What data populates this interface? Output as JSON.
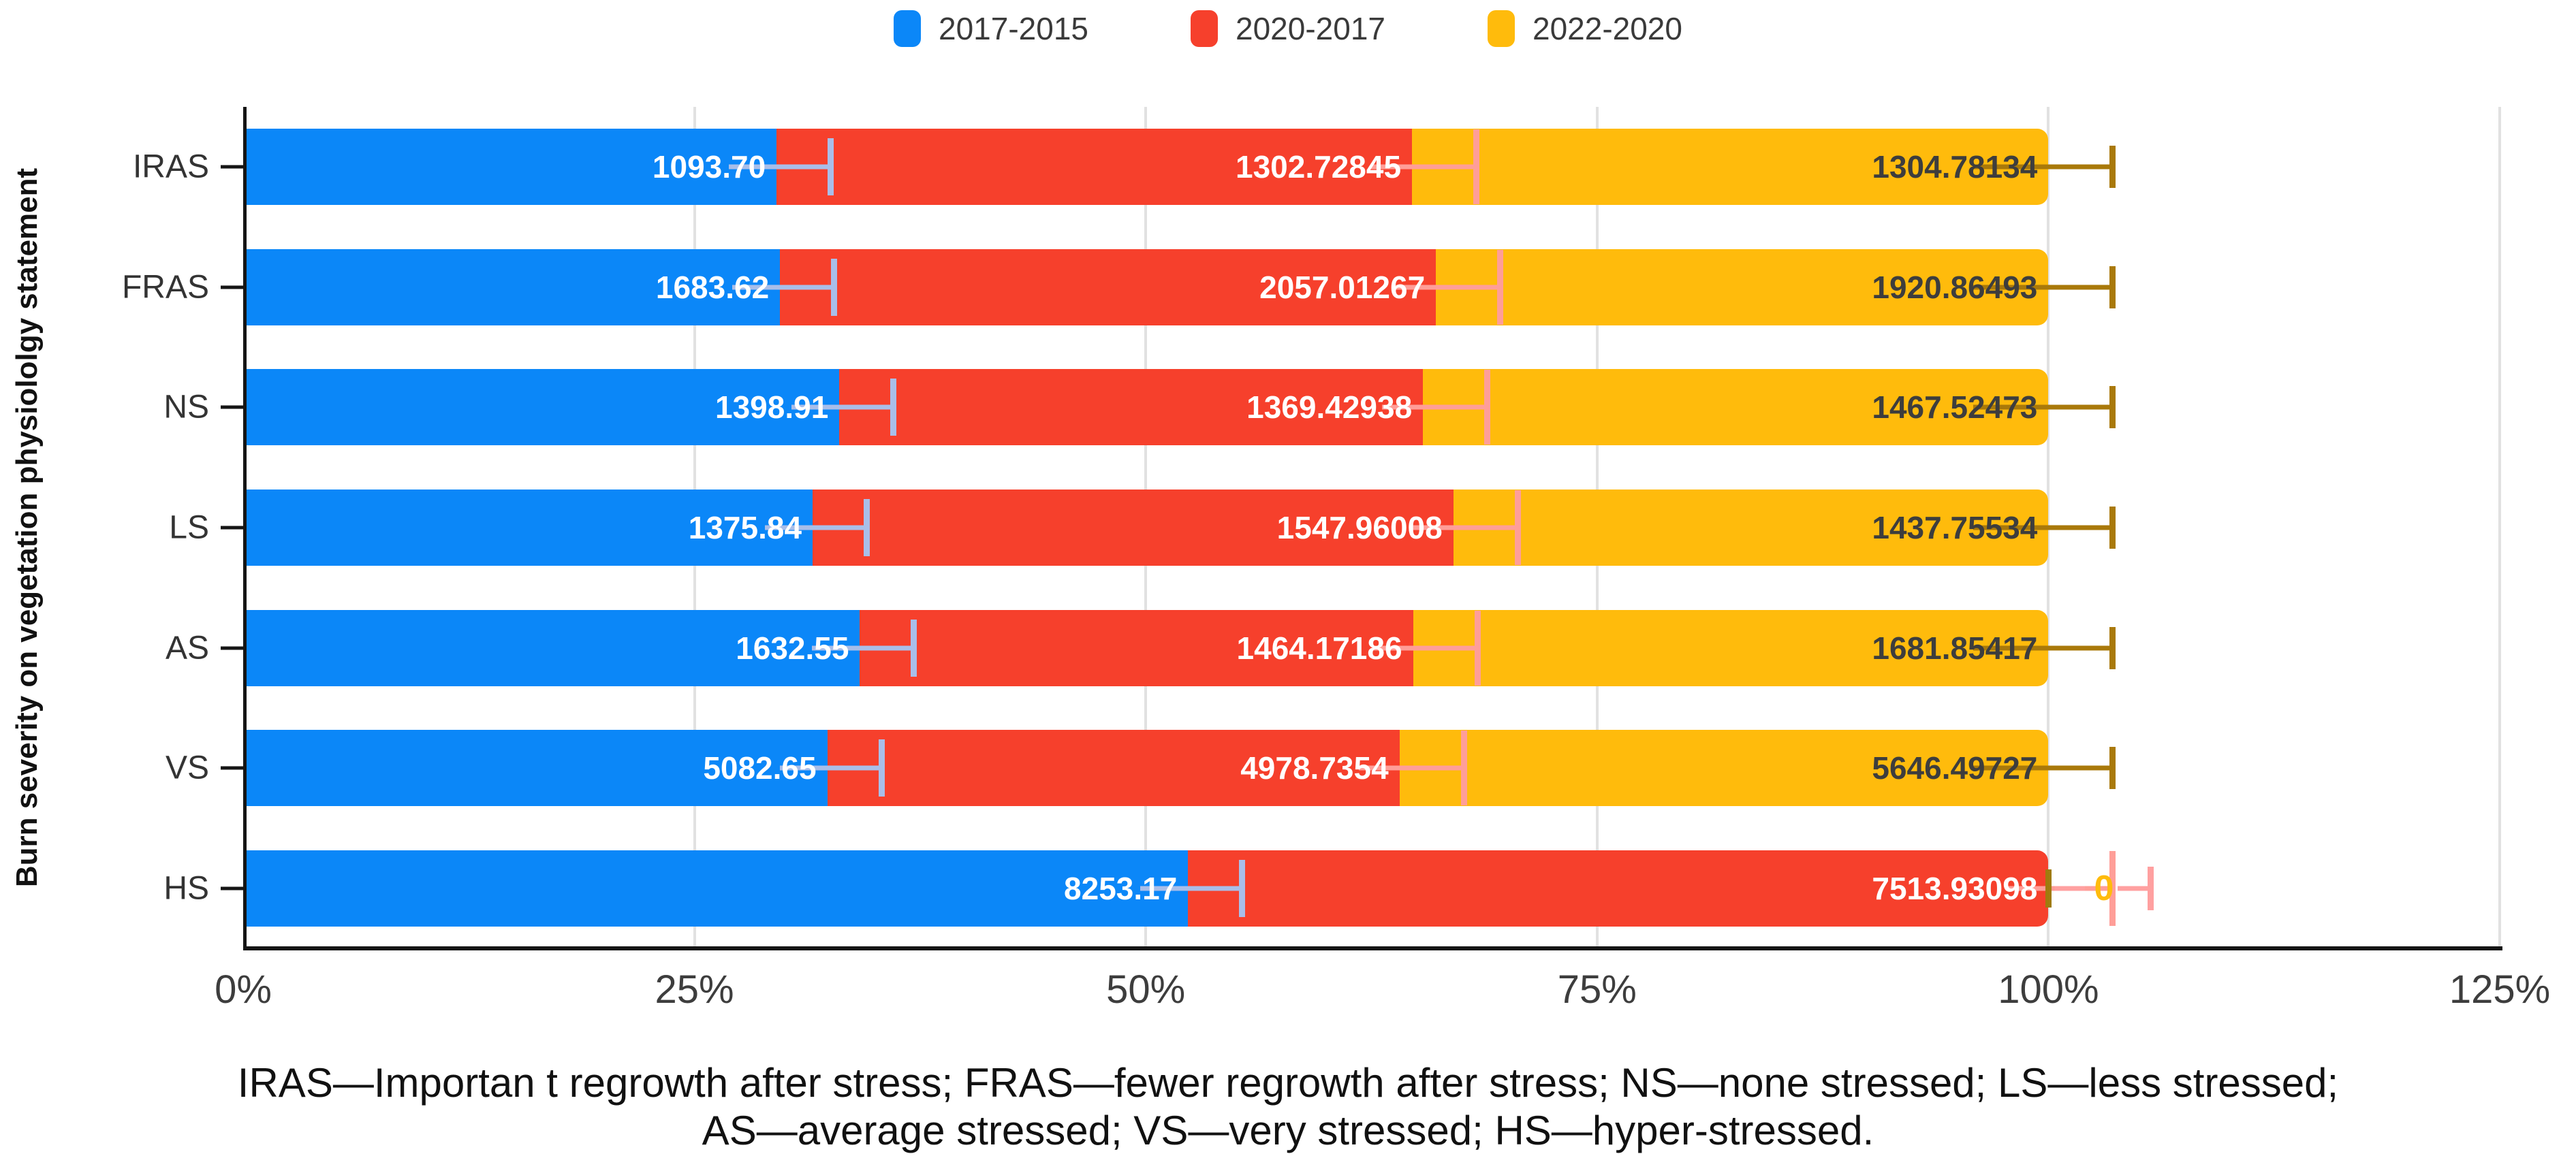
{
  "figure": {
    "y_axis_title": "Burn severity on vegetation physiololgy statement",
    "caption_lines": [
      "IRAS—Importan t regrowth after stress; FRAS—fewer regrowth after stress; NS—none stressed; LS—less stressed;",
      "AS—average stressed; VS—very stressed; HS—hyper-stressed."
    ]
  },
  "colors": {
    "axis": "#151515",
    "grid": "#e1e1e1",
    "category_text": "#333333",
    "tick_text": "#3d3d3d"
  },
  "chart_data": {
    "type": "bar",
    "stacked": "percent",
    "orientation": "horizontal",
    "categories": [
      "IRAS",
      "FRAS",
      "NS",
      "LS",
      "AS",
      "VS",
      "HS"
    ],
    "series": [
      {
        "name": "2017-2015",
        "color": "#0b87f8",
        "label_color": "#ffffff",
        "error_color": "#a9bee9",
        "values": [
          1093.7,
          1683.62,
          1398.91,
          1375.84,
          1632.55,
          5082.65,
          8253.17
        ],
        "labels": [
          "1093.70",
          "1683.62",
          "1398.91",
          "1375.84",
          "1632.55",
          "5082.65",
          "8253.17"
        ]
      },
      {
        "name": "2020-2017",
        "color": "#f6402c",
        "label_color": "#ffffff",
        "error_color": "#ff9e98",
        "values": [
          1302.72845,
          2057.01267,
          1369.42938,
          1547.96008,
          1464.17186,
          4978.7354,
          7513.93098
        ],
        "labels": [
          "1302.72845",
          "2057.01267",
          "1369.42938",
          "1547.96008",
          "1464.17186",
          "4978.7354",
          "7513.93098"
        ]
      },
      {
        "name": "2022-2020",
        "color": "#ffbb0c",
        "label_color": "#3d3d3d",
        "error_color": "#a9790a",
        "values": [
          1304.78134,
          1920.86493,
          1467.52473,
          1437.75534,
          1681.85417,
          5646.49727,
          0
        ],
        "labels": [
          "1304.78134",
          "1920.86493",
          "1467.52473",
          "1437.75534",
          "1681.85417",
          "5646.49727",
          "0"
        ]
      }
    ],
    "x_ticks": [
      {
        "label": "0%",
        "pct": 0
      },
      {
        "label": "25%",
        "pct": 25
      },
      {
        "label": "50%",
        "pct": 50
      },
      {
        "label": "75%",
        "pct": 75
      },
      {
        "label": "100%",
        "pct": 100
      },
      {
        "label": "125%",
        "pct": 125
      }
    ],
    "x_max_pct": 125,
    "zero_marker": {
      "label": "0",
      "label_color": "#ffbb0c",
      "whisker_color": "#ffa0a0",
      "tick_color": "#9f7b0e"
    }
  }
}
